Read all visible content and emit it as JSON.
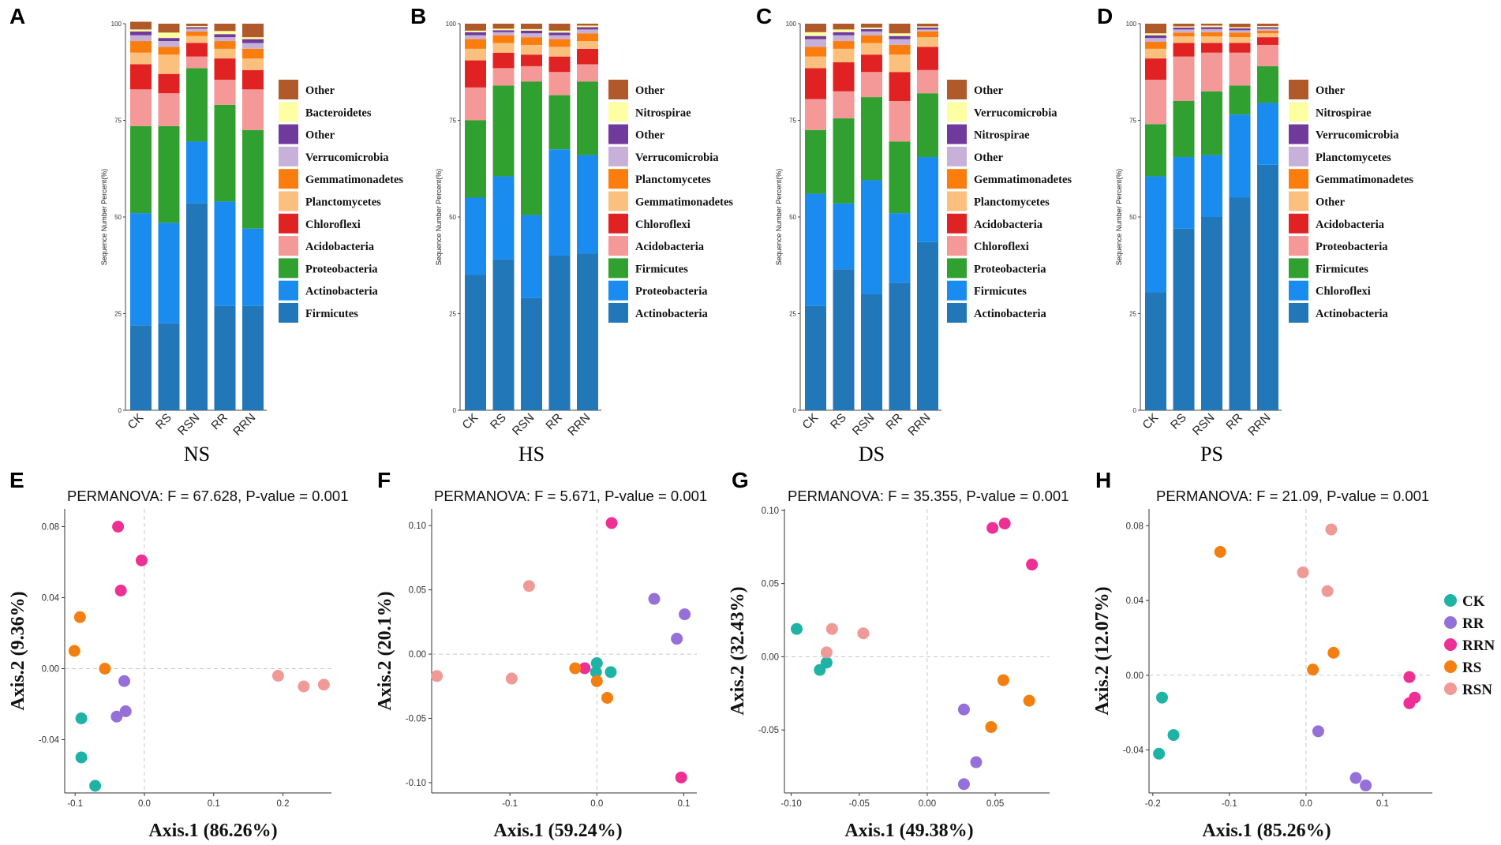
{
  "chart_data": [
    {
      "id": "A",
      "type": "bar",
      "stacked": true,
      "title": "NS",
      "xlabel": "",
      "ylabel": "Sequence Number Percent(%)",
      "ylim": [
        0,
        100
      ],
      "yticks": [
        "0",
        "25",
        "50",
        "75",
        "100"
      ],
      "categories": [
        "CK",
        "RS",
        "RSN",
        "RR",
        "RRN"
      ],
      "series": [
        {
          "name": "Firmicutes",
          "color": "#2277b8",
          "values": [
            22,
            22.5,
            53.5,
            27,
            27
          ]
        },
        {
          "name": "Actinobacteria",
          "color": "#1a8cf0",
          "values": [
            29,
            26,
            16,
            27,
            20
          ]
        },
        {
          "name": "Proteobacteria",
          "color": "#30a030",
          "values": [
            22.5,
            25,
            19,
            25,
            25.5
          ]
        },
        {
          "name": "Acidobacteria",
          "color": "#f59898",
          "values": [
            9.5,
            8.5,
            3,
            6.5,
            10.5
          ]
        },
        {
          "name": "Chloroflexi",
          "color": "#e02222",
          "values": [
            6.5,
            5,
            3.5,
            5.5,
            5
          ]
        },
        {
          "name": "Planctomycetes",
          "color": "#fbc07e",
          "values": [
            3,
            5,
            1.8,
            2.5,
            3
          ]
        },
        {
          "name": "Gemmatimonadetes",
          "color": "#fb7d0e",
          "values": [
            3,
            2,
            1.2,
            2,
            2.5
          ]
        },
        {
          "name": "Verrucomicrobia",
          "color": "#c7b1d8",
          "values": [
            1.5,
            1.5,
            0.7,
            1,
            1.5
          ]
        },
        {
          "name": "Other",
          "color": "#6f3a9c",
          "values": [
            1,
            0.8,
            0.4,
            0.8,
            1
          ]
        },
        {
          "name": "Bacteroidetes",
          "color": "#fefea2",
          "values": [
            0.5,
            1.4,
            0.3,
            0.8,
            0.5
          ]
        },
        {
          "name": "Other",
          "color": "#b0592a",
          "values": [
            2,
            2.3,
            0.6,
            1.9,
            3.5
          ]
        }
      ]
    },
    {
      "id": "B",
      "type": "bar",
      "stacked": true,
      "title": "HS",
      "xlabel": "",
      "ylabel": "Sequence Number Percent(%)",
      "ylim": [
        0,
        100
      ],
      "yticks": [
        "0",
        "25",
        "50",
        "75",
        "100"
      ],
      "categories": [
        "CK",
        "RS",
        "RSN",
        "RR",
        "RRN"
      ],
      "series": [
        {
          "name": "Actinobacteria",
          "color": "#2277b8",
          "values": [
            35,
            39,
            29,
            40,
            40.5
          ]
        },
        {
          "name": "Proteobacteria",
          "color": "#1a8cf0",
          "values": [
            20,
            21.5,
            21.5,
            27.5,
            25.5
          ]
        },
        {
          "name": "Firmicutes",
          "color": "#30a030",
          "values": [
            20,
            23.5,
            34.5,
            14,
            19
          ]
        },
        {
          "name": "Acidobacteria",
          "color": "#f59898",
          "values": [
            8.5,
            4.5,
            4,
            6,
            4.5
          ]
        },
        {
          "name": "Chloroflexi",
          "color": "#e02222",
          "values": [
            7,
            4,
            3,
            4,
            4
          ]
        },
        {
          "name": "Gemmatimonadetes",
          "color": "#fbc07e",
          "values": [
            3,
            2.5,
            2.5,
            2.5,
            2
          ]
        },
        {
          "name": "Planctomycetes",
          "color": "#fb7d0e",
          "values": [
            2.5,
            2,
            2,
            2,
            2
          ]
        },
        {
          "name": "Verrucomicrobia",
          "color": "#c7b1d8",
          "values": [
            1,
            0.8,
            1,
            1,
            1
          ]
        },
        {
          "name": "Other",
          "color": "#6f3a9c",
          "values": [
            0.8,
            0.5,
            0.7,
            0.7,
            0.6
          ]
        },
        {
          "name": "Nitrospirae",
          "color": "#fefea2",
          "values": [
            0.4,
            0.4,
            0.4,
            0.5,
            0.4
          ]
        },
        {
          "name": "Other",
          "color": "#b0592a",
          "values": [
            1.8,
            1.3,
            1.4,
            1.8,
            0.5
          ]
        }
      ]
    },
    {
      "id": "C",
      "type": "bar",
      "stacked": true,
      "title": "DS",
      "xlabel": "",
      "ylabel": "Sequence Number Percent(%)",
      "ylim": [
        0,
        100
      ],
      "yticks": [
        "0",
        "25",
        "50",
        "75",
        "100"
      ],
      "categories": [
        "CK",
        "RS",
        "RSN",
        "RR",
        "RRN"
      ],
      "series": [
        {
          "name": "Actinobacteria",
          "color": "#2277b8",
          "values": [
            27,
            36.5,
            30,
            33,
            43.5
          ]
        },
        {
          "name": "Firmicutes",
          "color": "#1a8cf0",
          "values": [
            29,
            17,
            29.5,
            18,
            22
          ]
        },
        {
          "name": "Proteobacteria",
          "color": "#30a030",
          "values": [
            16.5,
            22,
            21.5,
            18.5,
            16.5
          ]
        },
        {
          "name": "Chloroflexi",
          "color": "#f59898",
          "values": [
            8,
            7,
            6.5,
            10.5,
            6
          ]
        },
        {
          "name": "Acidobacteria",
          "color": "#e02222",
          "values": [
            8,
            7.5,
            4.5,
            7.5,
            6
          ]
        },
        {
          "name": "Planctomycetes",
          "color": "#fbc07e",
          "values": [
            3,
            3.5,
            3,
            4.5,
            2.5
          ]
        },
        {
          "name": "Gemmatimonadetes",
          "color": "#fb7d0e",
          "values": [
            2.5,
            2,
            2,
            2.5,
            1.5
          ]
        },
        {
          "name": "Other",
          "color": "#c7b1d8",
          "values": [
            2,
            1.5,
            1,
            1.5,
            0.5
          ]
        },
        {
          "name": "Nitrospirae",
          "color": "#6f3a9c",
          "values": [
            0.8,
            0.8,
            0.6,
            0.8,
            0.5
          ]
        },
        {
          "name": "Verrucomicrobia",
          "color": "#fefea2",
          "values": [
            1,
            0.7,
            0.4,
            0.7,
            0.3
          ]
        },
        {
          "name": "Other",
          "color": "#b0592a",
          "values": [
            2.2,
            1.5,
            1,
            2.5,
            0.7
          ]
        }
      ]
    },
    {
      "id": "D",
      "type": "bar",
      "stacked": true,
      "title": "PS",
      "xlabel": "",
      "ylabel": "Sequence Number Percent(%)",
      "ylim": [
        0,
        100
      ],
      "yticks": [
        "0",
        "25",
        "50",
        "75",
        "100"
      ],
      "categories": [
        "CK",
        "RS",
        "RSN",
        "RR",
        "RRN"
      ],
      "series": [
        {
          "name": "Actinobacteria",
          "color": "#2277b8",
          "values": [
            30.5,
            47,
            50,
            55,
            63.5
          ]
        },
        {
          "name": "Chloroflexi",
          "color": "#1a8cf0",
          "values": [
            30,
            18.5,
            16,
            21.5,
            16
          ]
        },
        {
          "name": "Firmicutes",
          "color": "#30a030",
          "values": [
            13.5,
            14.5,
            16.5,
            7.5,
            9.5
          ]
        },
        {
          "name": "Proteobacteria",
          "color": "#f59898",
          "values": [
            11.5,
            11.5,
            10,
            8.5,
            5.5
          ]
        },
        {
          "name": "Acidobacteria",
          "color": "#e02222",
          "values": [
            5.5,
            3.5,
            2.5,
            2.5,
            2
          ]
        },
        {
          "name": "Other",
          "color": "#fbc07e",
          "values": [
            2.5,
            1.7,
            1.7,
            1.5,
            1
          ]
        },
        {
          "name": "Gemmatimonadetes",
          "color": "#fb7d0e",
          "values": [
            1.8,
            1,
            1.1,
            1.2,
            0.7
          ]
        },
        {
          "name": "Planctomycetes",
          "color": "#c7b1d8",
          "values": [
            1,
            0.8,
            0.8,
            0.6,
            0.5
          ]
        },
        {
          "name": "Verrucomicrobia",
          "color": "#6f3a9c",
          "values": [
            0.7,
            0.5,
            0.5,
            0.5,
            0.4
          ]
        },
        {
          "name": "Nitrospirae",
          "color": "#fefea2",
          "values": [
            0.5,
            0.3,
            0.4,
            0.3,
            0.3
          ]
        },
        {
          "name": "Other",
          "color": "#b0592a",
          "values": [
            2.5,
            0.7,
            0.5,
            0.9,
            0.6
          ]
        }
      ]
    },
    {
      "id": "E",
      "type": "scatter",
      "title": "PERMANOVA: F = 67.628, P-value = 0.001",
      "xlabel": "Axis.1 (86.26%)",
      "ylabel": "Axis.2 (9.36%)",
      "xlim": [
        -0.115,
        0.27
      ],
      "ylim": [
        -0.07,
        0.09
      ],
      "xticks": [
        -0.1,
        0,
        0.1,
        0.2
      ],
      "xtick_labels": [
        "-0.1",
        "0.0",
        "0.1",
        "0.2"
      ],
      "yticks": [
        -0.04,
        0,
        0.04,
        0.08
      ],
      "ytick_labels": [
        "-0.04",
        "0.00",
        "0.04",
        "0.08"
      ],
      "series": [
        {
          "name": "CK",
          "points": [
            [
              -0.091,
              -0.028
            ],
            [
              -0.091,
              -0.05
            ],
            [
              -0.071,
              -0.066
            ]
          ]
        },
        {
          "name": "RR",
          "points": [
            [
              -0.029,
              -0.007
            ],
            [
              -0.027,
              -0.024
            ],
            [
              -0.04,
              -0.027
            ]
          ]
        },
        {
          "name": "RRN",
          "points": [
            [
              -0.038,
              0.08
            ],
            [
              -0.004,
              0.061
            ],
            [
              -0.034,
              0.044
            ]
          ]
        },
        {
          "name": "RS",
          "points": [
            [
              -0.093,
              0.029
            ],
            [
              -0.101,
              0.01
            ],
            [
              -0.057,
              0
            ]
          ]
        },
        {
          "name": "RSN",
          "points": [
            [
              0.193,
              -0.004
            ],
            [
              0.23,
              -0.01
            ],
            [
              0.259,
              -0.009
            ]
          ]
        }
      ]
    },
    {
      "id": "F",
      "type": "scatter",
      "title": "PERMANOVA: F = 5.671, P-value = 0.001",
      "xlabel": "Axis.1 (59.24%)",
      "ylabel": "Axis.2 (20.1%)",
      "xlim": [
        -0.19,
        0.115
      ],
      "ylim": [
        -0.108,
        0.113
      ],
      "xticks": [
        -0.1,
        0,
        0.1
      ],
      "xtick_labels": [
        "-0.1",
        "0.0",
        "0.1"
      ],
      "yticks": [
        -0.1,
        -0.05,
        0,
        0.05,
        0.1
      ],
      "ytick_labels": [
        "-0.10",
        "-0.05",
        "0.00",
        "0.05",
        "0.10"
      ],
      "series": [
        {
          "name": "CK",
          "points": [
            [
              0,
              -0.007
            ],
            [
              -0.001,
              -0.014
            ],
            [
              0.016,
              -0.014
            ]
          ]
        },
        {
          "name": "RR",
          "points": [
            [
              0.066,
              0.043
            ],
            [
              0.101,
              0.031
            ],
            [
              0.092,
              0.012
            ]
          ]
        },
        {
          "name": "RRN",
          "points": [
            [
              0.017,
              0.102
            ],
            [
              -0.014,
              -0.011
            ],
            [
              0.097,
              -0.096
            ]
          ]
        },
        {
          "name": "RS",
          "points": [
            [
              -0.025,
              -0.011
            ],
            [
              0,
              -0.021
            ],
            [
              0.012,
              -0.034
            ]
          ]
        },
        {
          "name": "RSN",
          "points": [
            [
              -0.078,
              0.053
            ],
            [
              -0.184,
              -0.017
            ],
            [
              -0.098,
              -0.019
            ]
          ]
        }
      ]
    },
    {
      "id": "G",
      "type": "scatter",
      "title": "PERMANOVA: F = 35.355, P-value = 0.001",
      "xlabel": "Axis.1 (49.38%)",
      "ylabel": "Axis.2 (32.43%)",
      "xlim": [
        -0.105,
        0.09
      ],
      "ylim": [
        -0.093,
        0.101
      ],
      "xticks": [
        -0.1,
        -0.05,
        0,
        0.05
      ],
      "xtick_labels": [
        "-0.10",
        "-0.05",
        "0.00",
        "0.05"
      ],
      "yticks": [
        -0.05,
        0,
        0.05,
        0.1
      ],
      "ytick_labels": [
        "-0.05",
        "0.00",
        "0.05",
        "0.10"
      ],
      "series": [
        {
          "name": "CK",
          "points": [
            [
              -0.096,
              0.019
            ],
            [
              -0.074,
              -0.004
            ],
            [
              -0.079,
              -0.009
            ]
          ]
        },
        {
          "name": "RR",
          "points": [
            [
              0.027,
              -0.036
            ],
            [
              0.036,
              -0.072
            ],
            [
              0.027,
              -0.087
            ]
          ]
        },
        {
          "name": "RRN",
          "points": [
            [
              0.048,
              0.088
            ],
            [
              0.057,
              0.091
            ],
            [
              0.077,
              0.063
            ]
          ]
        },
        {
          "name": "RS",
          "points": [
            [
              0.056,
              -0.016
            ],
            [
              0.047,
              -0.048
            ],
            [
              0.075,
              -0.03
            ]
          ]
        },
        {
          "name": "RSN",
          "points": [
            [
              -0.07,
              0.019
            ],
            [
              -0.047,
              0.016
            ],
            [
              -0.074,
              0.003
            ]
          ]
        }
      ]
    },
    {
      "id": "H",
      "type": "scatter",
      "title": "PERMANOVA: F = 21.09, P-value = 0.001",
      "xlabel": "Axis.1 (85.26%)",
      "ylabel": "Axis.2 (12.07%)",
      "xlim": [
        -0.205,
        0.165
      ],
      "ylim": [
        -0.063,
        0.089
      ],
      "xticks": [
        -0.2,
        -0.1,
        0,
        0.1
      ],
      "xtick_labels": [
        "-0.2",
        "-0.1",
        "0.0",
        "0.1"
      ],
      "yticks": [
        -0.04,
        0,
        0.04,
        0.08
      ],
      "ytick_labels": [
        "-0.04",
        "0.00",
        "0.04",
        "0.08"
      ],
      "series": [
        {
          "name": "CK",
          "points": [
            [
              -0.188,
              -0.012
            ],
            [
              -0.173,
              -0.032
            ],
            [
              -0.192,
              -0.042
            ]
          ]
        },
        {
          "name": "RR",
          "points": [
            [
              0.016,
              -0.03
            ],
            [
              0.065,
              -0.055
            ],
            [
              0.078,
              -0.059
            ]
          ]
        },
        {
          "name": "RRN",
          "points": [
            [
              0.135,
              -0.001
            ],
            [
              0.142,
              -0.012
            ],
            [
              0.135,
              -0.015
            ]
          ]
        },
        {
          "name": "RS",
          "points": [
            [
              -0.112,
              0.066
            ],
            [
              0.009,
              0.003
            ],
            [
              0.036,
              0.012
            ]
          ]
        },
        {
          "name": "RSN",
          "points": [
            [
              0.033,
              0.078
            ],
            [
              -0.004,
              0.055
            ],
            [
              0.028,
              0.045
            ]
          ]
        }
      ]
    }
  ],
  "scatter_legend": [
    {
      "name": "CK",
      "color": "#1fb3a5"
    },
    {
      "name": "RR",
      "color": "#9570d8"
    },
    {
      "name": "RRN",
      "color": "#ee2f94"
    },
    {
      "name": "RS",
      "color": "#f47f11"
    },
    {
      "name": "RSN",
      "color": "#f09a97"
    }
  ]
}
